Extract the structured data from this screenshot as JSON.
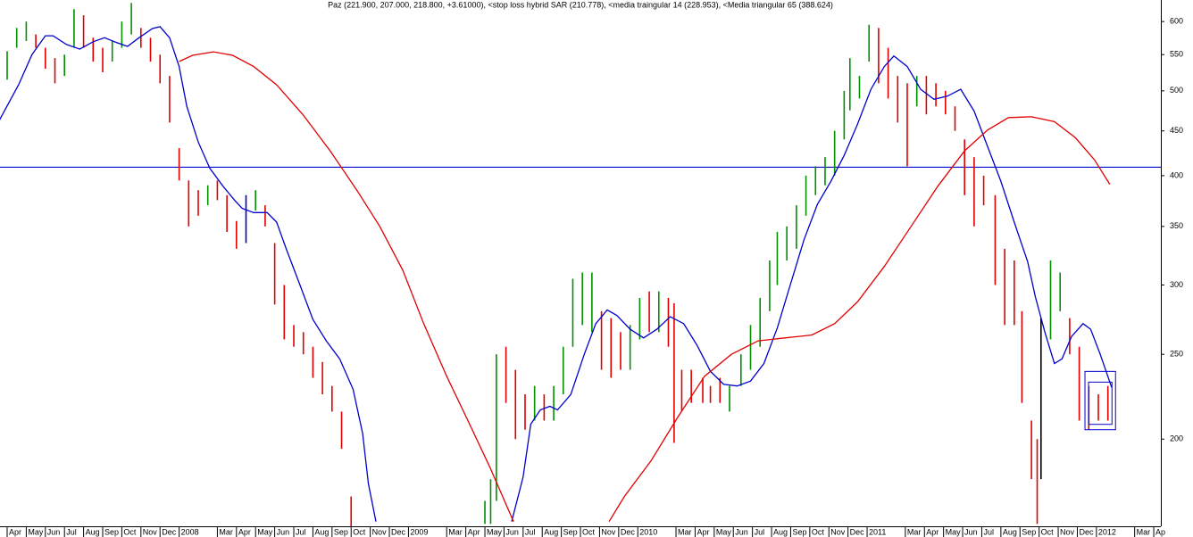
{
  "chart_data": {
    "type": "ohlc",
    "title": "Paz (221.900, 207.000, 218.800, +3.61000), <stop loss hybrid SAR (210.778), <media traingular 14 (228.953), <Media triangular 65 (388.624)",
    "log_scale": true,
    "xlim": [
      -0.374,
      60.371
    ],
    "ylim": [
      159,
      635
    ],
    "yticks": [
      200,
      250,
      300,
      350,
      400,
      450,
      500,
      550,
      600
    ],
    "xticks": [
      {
        "value": 0,
        "label": "Apr"
      },
      {
        "value": 1,
        "label": "May"
      },
      {
        "value": 2,
        "label": "Jun"
      },
      {
        "value": 3,
        "label": "Jul"
      },
      {
        "value": 4,
        "label": "Aug"
      },
      {
        "value": 5,
        "label": "Sep"
      },
      {
        "value": 6,
        "label": "Oct"
      },
      {
        "value": 7,
        "label": "Nov"
      },
      {
        "value": 8,
        "label": "Dec"
      },
      {
        "value": 9,
        "label": "2008"
      },
      {
        "value": 11,
        "label": "Mar"
      },
      {
        "value": 12,
        "label": "Apr"
      },
      {
        "value": 13,
        "label": "May"
      },
      {
        "value": 14,
        "label": "Jun"
      },
      {
        "value": 15,
        "label": "Jul"
      },
      {
        "value": 16,
        "label": "Aug"
      },
      {
        "value": 17,
        "label": "Sep"
      },
      {
        "value": 18,
        "label": "Oct"
      },
      {
        "value": 19,
        "label": "Nov"
      },
      {
        "value": 20,
        "label": "Dec"
      },
      {
        "value": 21,
        "label": "2009"
      },
      {
        "value": 23,
        "label": "Mar"
      },
      {
        "value": 24,
        "label": "Apr"
      },
      {
        "value": 25,
        "label": "May"
      },
      {
        "value": 26,
        "label": "Jun"
      },
      {
        "value": 27,
        "label": "Jul"
      },
      {
        "value": 28,
        "label": "Aug"
      },
      {
        "value": 29,
        "label": "Sep"
      },
      {
        "value": 30,
        "label": "Oct"
      },
      {
        "value": 31,
        "label": "Nov"
      },
      {
        "value": 32,
        "label": "Dec"
      },
      {
        "value": 33,
        "label": "2010"
      },
      {
        "value": 35,
        "label": "Mar"
      },
      {
        "value": 36,
        "label": "Apr"
      },
      {
        "value": 37,
        "label": "May"
      },
      {
        "value": 38,
        "label": "Jun"
      },
      {
        "value": 39,
        "label": "Jul"
      },
      {
        "value": 40,
        "label": "Aug"
      },
      {
        "value": 41,
        "label": "Sep"
      },
      {
        "value": 42,
        "label": "Oct"
      },
      {
        "value": 43,
        "label": "Nov"
      },
      {
        "value": 44,
        "label": "Dec"
      },
      {
        "value": 45,
        "label": "2011"
      },
      {
        "value": 47,
        "label": "Mar"
      },
      {
        "value": 48,
        "label": "Apr"
      },
      {
        "value": 49,
        "label": "May"
      },
      {
        "value": 50,
        "label": "Jun"
      },
      {
        "value": 51,
        "label": "Jul"
      },
      {
        "value": 52,
        "label": "Aug"
      },
      {
        "value": 53,
        "label": "Sep"
      },
      {
        "value": 54,
        "label": "Oct"
      },
      {
        "value": 55,
        "label": "Nov"
      },
      {
        "value": 56,
        "label": "Dec"
      },
      {
        "value": 57,
        "label": "2012"
      },
      {
        "value": 59,
        "label": "Mar"
      },
      {
        "value": 60,
        "label": "Ap"
      }
    ],
    "bars": {
      "x": [
        0,
        0.5,
        1,
        1.5,
        2,
        2.5,
        3,
        3.5,
        4,
        4.5,
        5,
        5.5,
        6,
        6.5,
        7,
        7.5,
        8,
        8.5,
        9,
        9.5,
        10,
        10.5,
        11,
        11.5,
        12,
        12.5,
        13,
        13.5,
        14,
        14.5,
        15,
        15.5,
        16,
        16.5,
        17,
        17.5,
        18,
        25,
        25.3,
        25.6,
        26.1,
        26.6,
        27.1,
        27.6,
        28.1,
        28.6,
        29.1,
        29.6,
        30.1,
        30.6,
        31.1,
        31.6,
        32.1,
        32.6,
        33.1,
        33.6,
        34.1,
        34.6,
        34.9,
        35.3,
        35.8,
        36.4,
        36.8,
        37.3,
        37.8,
        38.4,
        38.9,
        39.4,
        39.9,
        40.3,
        40.8,
        41.3,
        41.8,
        42.3,
        42.8,
        43.3,
        43.8,
        44.1,
        44.6,
        45.1,
        45.6,
        46.1,
        46.6,
        47.1,
        47.6,
        48.1,
        48.6,
        49.1,
        49.6,
        50.1,
        50.6,
        51.1,
        51.7,
        52.2,
        52.7,
        53.1,
        53.6,
        53.9,
        54.1,
        54.6,
        55.1,
        55.6,
        56.1,
        56.6,
        57.1,
        57.6
      ],
      "low": [
        515,
        560,
        570,
        560,
        530,
        510,
        520,
        560,
        560,
        540,
        525,
        540,
        560,
        580,
        560,
        540,
        510,
        460,
        395,
        350,
        360,
        370,
        375,
        345,
        330,
        335,
        365,
        350,
        285,
        260,
        255,
        250,
        235,
        225,
        215,
        195,
        150,
        160,
        160,
        170,
        220,
        200,
        205,
        210,
        210,
        210,
        225,
        255,
        270,
        265,
        240,
        235,
        240,
        240,
        260,
        265,
        265,
        255,
        198,
        215,
        220,
        220,
        220,
        220,
        215,
        230,
        240,
        255,
        280,
        300,
        320,
        330,
        360,
        380,
        390,
        400,
        440,
        475,
        490,
        540,
        510,
        490,
        460,
        410,
        480,
        470,
        480,
        470,
        450,
        380,
        350,
        370,
        300,
        270,
        270,
        220,
        180,
        160,
        180,
        260,
        280,
        250,
        210,
        205,
        210,
        210
      ],
      "high": [
        555,
        590,
        600,
        580,
        560,
        545,
        550,
        620,
        610,
        575,
        560,
        570,
        600,
        630,
        590,
        575,
        550,
        520,
        430,
        395,
        385,
        390,
        395,
        380,
        355,
        380,
        385,
        370,
        335,
        300,
        270,
        265,
        255,
        245,
        230,
        215,
        172,
        170,
        180,
        250,
        255,
        240,
        225,
        230,
        225,
        230,
        255,
        305,
        310,
        310,
        280,
        275,
        265,
        270,
        290,
        295,
        295,
        290,
        286,
        240,
        240,
        235,
        230,
        235,
        230,
        250,
        270,
        290,
        320,
        345,
        350,
        370,
        400,
        410,
        420,
        450,
        500,
        545,
        520,
        595,
        590,
        560,
        520,
        510,
        520,
        520,
        510,
        500,
        480,
        440,
        420,
        400,
        380,
        330,
        320,
        280,
        210,
        200,
        275,
        320,
        310,
        275,
        255,
        230,
        225,
        230
      ],
      "colors": [
        "#009000",
        "#009000",
        "#009000",
        "#e00000",
        "#e00000",
        "#e00000",
        "#009000",
        "#009000",
        "#e00000",
        "#e00000",
        "#e00000",
        "#009000",
        "#009000",
        "#009000",
        "#e00000",
        "#e00000",
        "#e00000",
        "#e00000",
        "#e00000",
        "#e00000",
        "#e00000",
        "#009000",
        "#e00000",
        "#e00000",
        "#e00000",
        "#0000cc",
        "#009000",
        "#e00000",
        "#e00000",
        "#e00000",
        "#e00000",
        "#e00000",
        "#e00000",
        "#e00000",
        "#e00000",
        "#e00000",
        "#e00000",
        "#009000",
        "#009000",
        "#009000",
        "#e00000",
        "#e00000",
        "#e00000",
        "#009000",
        "#e00000",
        "#009000",
        "#009000",
        "#009000",
        "#009000",
        "#009000",
        "#e00000",
        "#e00000",
        "#e00000",
        "#009000",
        "#009000",
        "#e00000",
        "#009000",
        "#e00000",
        "#e00000",
        "#e00000",
        "#e00000",
        "#e00000",
        "#e00000",
        "#e00000",
        "#009000",
        "#009000",
        "#009000",
        "#009000",
        "#009000",
        "#009000",
        "#009000",
        "#009000",
        "#009000",
        "#009000",
        "#009000",
        "#009000",
        "#009000",
        "#009000",
        "#009000",
        "#009000",
        "#e00000",
        "#e00000",
        "#e00000",
        "#e00000",
        "#009000",
        "#e00000",
        "#e00000",
        "#e00000",
        "#e00000",
        "#e00000",
        "#e00000",
        "#e00000",
        "#e00000",
        "#e00000",
        "#e00000",
        "#e00000",
        "#e00000",
        "#e00000",
        "#000000",
        "#009000",
        "#009000",
        "#e00000",
        "#e00000",
        "#e00000",
        "#e00000",
        "#e00000"
      ]
    },
    "lines": [
      {
        "color": "#0000cc",
        "x": [
          -0.4,
          0.6,
          1.3,
          2.0,
          2.4,
          3.1,
          3.8,
          4.5,
          5.1,
          5.7,
          6.3,
          6.9,
          7.6,
          8.0,
          8.5,
          9.0,
          9.4,
          10.0,
          10.6,
          11.3,
          11.9,
          12.3,
          12.9,
          13.6,
          14.1,
          14.6,
          15.3,
          16.0,
          16.7,
          17.4,
          18.1,
          18.6,
          18.9,
          19.3,
          19.3,
          26.4,
          27.0,
          27.4,
          27.9,
          28.4,
          28.8,
          29.5,
          30.2,
          30.8,
          31.4,
          31.9,
          32.6,
          33.3,
          34.0,
          34.7,
          35.4,
          36.1,
          36.8,
          37.5,
          38.2,
          38.9,
          39.6,
          40.3,
          41.0,
          41.7,
          42.4,
          43.1,
          43.8,
          44.5,
          45.2,
          45.9,
          46.4,
          47.1,
          47.8,
          48.5,
          49.2,
          49.9,
          50.6,
          51.3,
          52.0,
          52.7,
          53.4,
          53.8,
          54.3,
          54.8,
          55.2,
          55.7,
          56.3,
          56.7,
          57.2,
          57.8
        ],
        "values": [
          463,
          508,
          550,
          578,
          578,
          565,
          558,
          569,
          575,
          568,
          562,
          575,
          589,
          592,
          575,
          533,
          480,
          437,
          408,
          389,
          375,
          367,
          363,
          363,
          354,
          330,
          301,
          274,
          259,
          247,
          228,
          203,
          178,
          161,
          null,
          161,
          181,
          208,
          216,
          218,
          216,
          225,
          250,
          271,
          281,
          277,
          267,
          261,
          267,
          276,
          271,
          256,
          239,
          231,
          230,
          233,
          244,
          268,
          301,
          338,
          371,
          394,
          422,
          458,
          502,
          533,
          548,
          533,
          502,
          489,
          493,
          502,
          474,
          432,
          394,
          354,
          319,
          291,
          265,
          244,
          247,
          262,
          271,
          267,
          250,
          229
        ]
      },
      {
        "color": "#e00000",
        "x": [
          9.0,
          9.7,
          10.8,
          11.8,
          12.9,
          14.1,
          15.5,
          16.9,
          18.3,
          19.5,
          20.7,
          21.8,
          23.0,
          24.2,
          25.3,
          26.5,
          26.5,
          31.5,
          32.3,
          33.7,
          35.1,
          36.5,
          37.9,
          39.3,
          40.7,
          42.1,
          43.3,
          44.5,
          45.9,
          47.3,
          48.7,
          50.1,
          51.3,
          52.4,
          53.6,
          54.8,
          55.9,
          56.9,
          57.7
        ],
        "values": [
          540,
          549,
          554,
          549,
          533,
          508,
          469,
          427,
          385,
          350,
          312,
          271,
          236,
          208,
          185,
          161,
          null,
          161,
          172,
          189,
          212,
          236,
          250,
          259,
          261,
          263,
          271,
          287,
          315,
          350,
          389,
          427,
          451,
          466,
          467,
          461,
          442,
          417,
          391
        ]
      }
    ],
    "hline": {
      "value": 409,
      "color": "#0000cc"
    },
    "highlight_box": {
      "x": [
        56.4,
        58.0
      ],
      "y": [
        205,
        239
      ],
      "color": "#0000cc"
    }
  }
}
